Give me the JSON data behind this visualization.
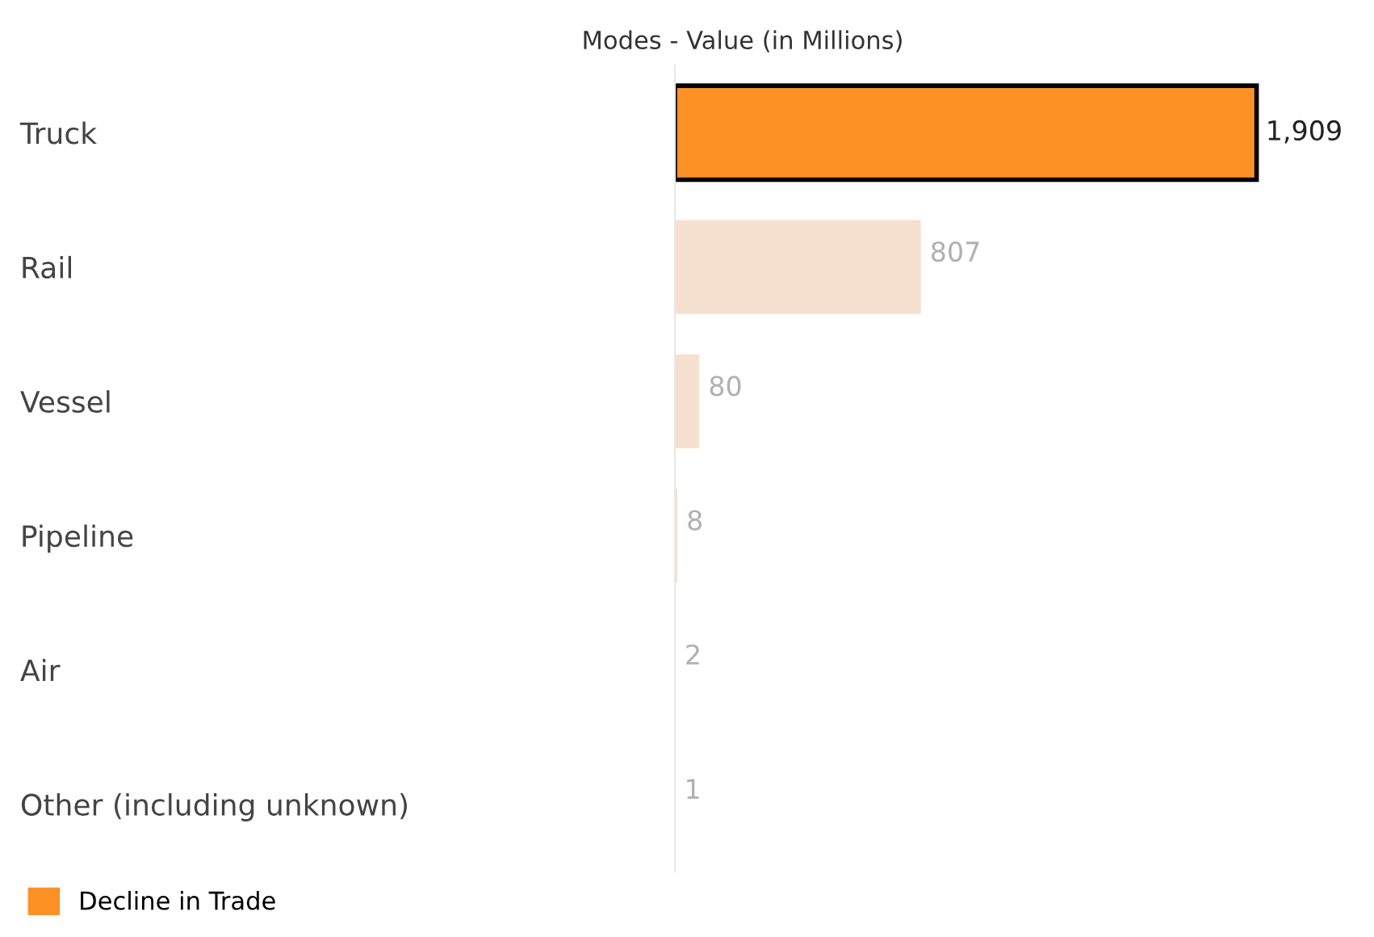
{
  "chart_data": {
    "type": "bar",
    "orientation": "horizontal",
    "title": "Modes - Value (in Millions)",
    "categories": [
      "Truck",
      "Rail",
      "Vessel",
      "Pipeline",
      "Air",
      "Other (including unknown)"
    ],
    "series": [
      {
        "name": "Decline in Trade",
        "color": "#fd9126",
        "values": [
          1909,
          807,
          80,
          8,
          2,
          1
        ],
        "colors": [
          "#fd9126",
          "#f6e0cf",
          "#f6e0cf",
          "#f6e0cf",
          "#f6e0cf",
          "#f6e0cf"
        ],
        "value_labels": [
          "1,909",
          "807",
          "80",
          "8",
          "2",
          "1"
        ]
      }
    ],
    "tick_labels": "y",
    "grid": false,
    "legend": "bottom left"
  }
}
